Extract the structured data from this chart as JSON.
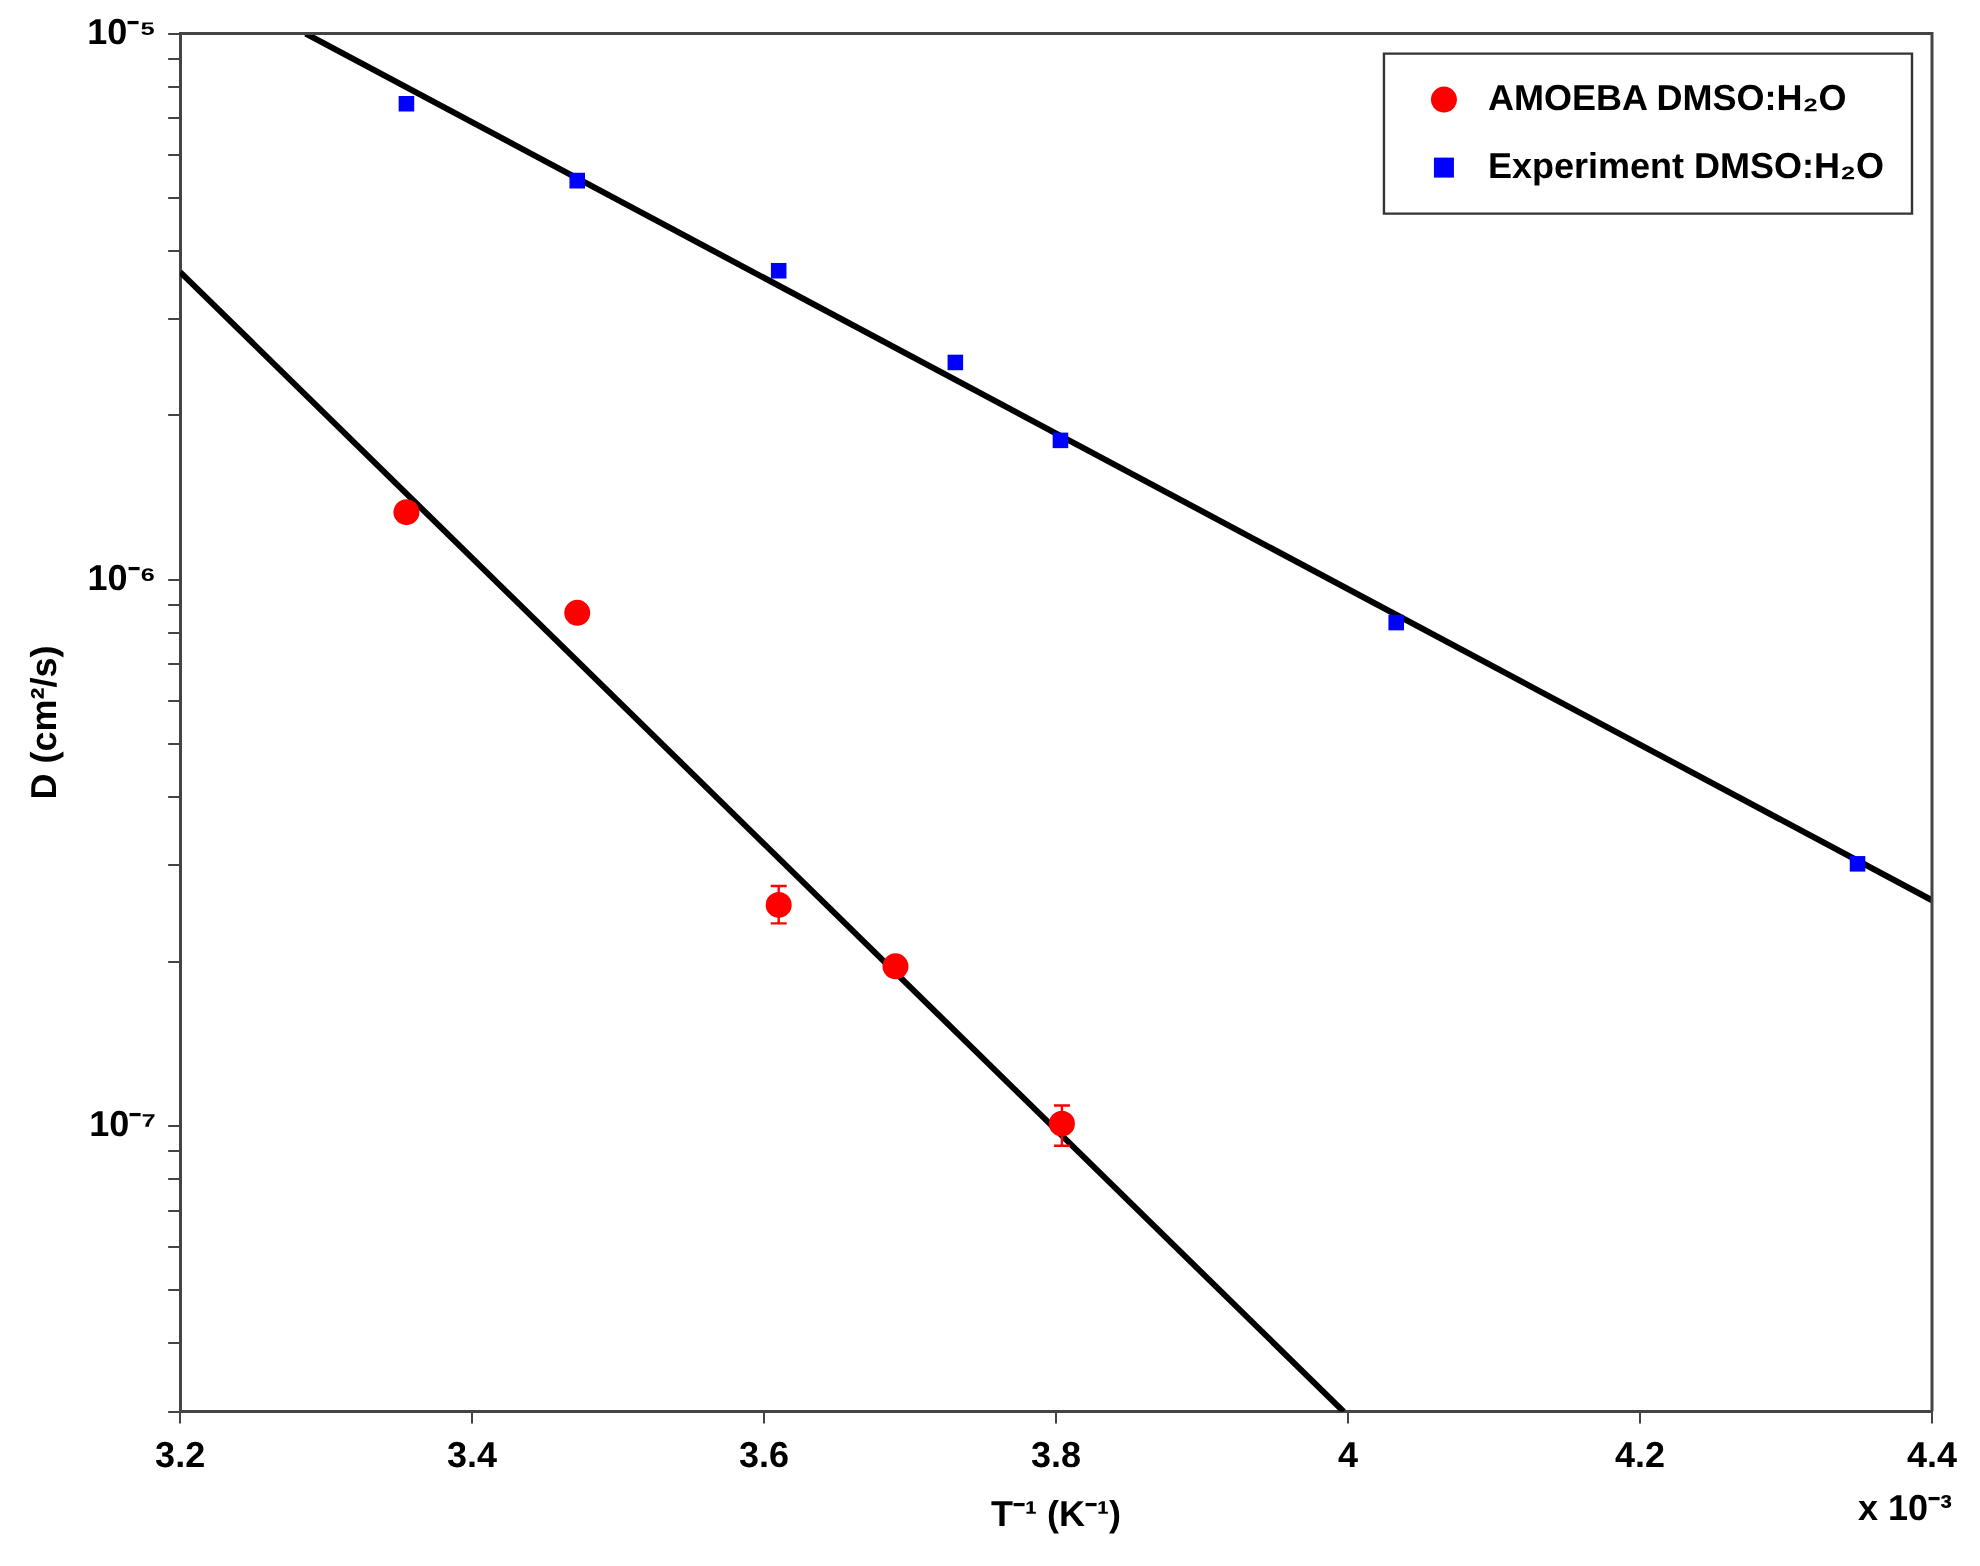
{
  "chart_data": {
    "type": "scatter",
    "xlabel": "T⁻¹ (K⁻¹)",
    "ylabel": "D (cm²/s)",
    "xlim": [
      3.2,
      4.4
    ],
    "xticks": [
      3.2,
      3.4,
      3.6,
      3.8,
      4,
      4.2,
      4.4
    ],
    "ylim": [
      3e-08,
      1e-05
    ],
    "log": "y",
    "yticks": [
      {
        "value": 3e-08,
        "label": null
      },
      {
        "value": 4e-08,
        "label": null
      },
      {
        "value": 5e-08,
        "label": null
      },
      {
        "value": 6e-08,
        "label": null
      },
      {
        "value": 7e-08,
        "label": null
      },
      {
        "value": 8e-08,
        "label": null
      },
      {
        "value": 9e-08,
        "label": null
      },
      {
        "value": 1e-07,
        "label": "10⁻⁷"
      },
      {
        "value": 2e-07,
        "label": null
      },
      {
        "value": 3e-07,
        "label": null
      },
      {
        "value": 4e-07,
        "label": null
      },
      {
        "value": 5e-07,
        "label": null
      },
      {
        "value": 6e-07,
        "label": null
      },
      {
        "value": 7e-07,
        "label": null
      },
      {
        "value": 8e-07,
        "label": null
      },
      {
        "value": 9e-07,
        "label": null
      },
      {
        "value": 1e-06,
        "label": "10⁻⁶"
      },
      {
        "value": 2e-06,
        "label": null
      },
      {
        "value": 3e-06,
        "label": null
      },
      {
        "value": 4e-06,
        "label": null
      },
      {
        "value": 5e-06,
        "label": null
      },
      {
        "value": 6e-06,
        "label": null
      },
      {
        "value": 7e-06,
        "label": null
      },
      {
        "value": 8e-06,
        "label": null
      },
      {
        "value": 9e-06,
        "label": null
      },
      {
        "value": 1e-05,
        "label": "10⁻⁵"
      }
    ],
    "grid": false,
    "legend": "top right",
    "annotations": [
      "x 10⁻³"
    ],
    "series": [
      {
        "name": "AMOEBA DMSO:H₂O",
        "color": "#ff0000",
        "marker": "circle",
        "x": [
          3.355,
          3.472,
          3.61,
          3.69,
          3.804
        ],
        "values": [
          1.33e-06,
          8.7e-07,
          2.54e-07,
          1.96e-07,
          1.01e-07
        ],
        "errors": [
          null,
          null,
          [
            2.35e-07,
            2.75e-07
          ],
          null,
          [
            9.2e-08,
            1.09e-07
          ]
        ]
      },
      {
        "name": "Experiment DMSO:H₂O",
        "color": "#0000ff",
        "marker": "square",
        "x": [
          3.355,
          3.472,
          3.61,
          3.731,
          3.803,
          4.033,
          4.349
        ],
        "values": [
          7.44e-06,
          5.38e-06,
          3.68e-06,
          2.5e-06,
          1.8e-06,
          8.35e-07,
          3.02e-07
        ]
      },
      {
        "type": "line",
        "color": "#000000",
        "marker": "none",
        "x": [
          3.286,
          4.4
        ],
        "values": [
          1e-05,
          2.59e-07
        ]
      },
      {
        "type": "line",
        "color": "#000000",
        "marker": "none",
        "x": [
          3.2,
          3.997
        ],
        "values": [
          3.66e-06,
          3e-08
        ]
      }
    ]
  }
}
